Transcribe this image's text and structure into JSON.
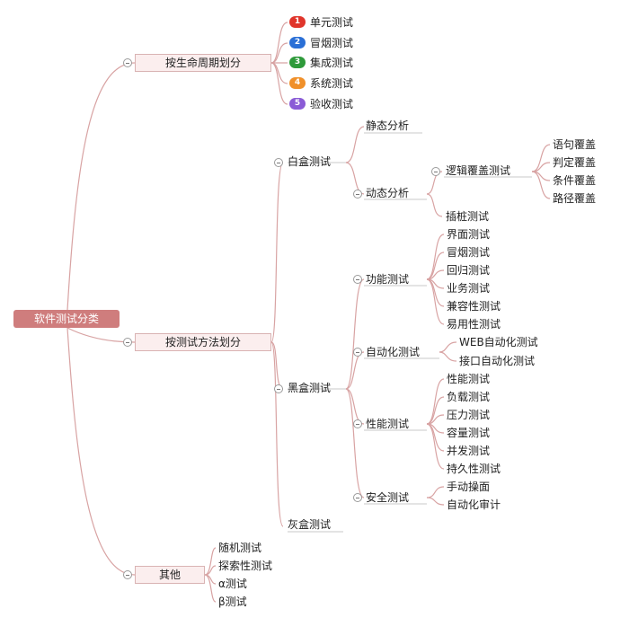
{
  "root": "软件测试分类",
  "branches": {
    "lifecycle": {
      "label": "按生命周期划分",
      "items": [
        {
          "num": "1",
          "label": "单元测试",
          "color": "#e0352b"
        },
        {
          "num": "2",
          "label": "冒烟测试",
          "color": "#2a6fd6"
        },
        {
          "num": "3",
          "label": "集成测试",
          "color": "#2e9a3a"
        },
        {
          "num": "4",
          "label": "系统测试",
          "color": "#f0902a"
        },
        {
          "num": "5",
          "label": "验收测试",
          "color": "#8a5bd6"
        }
      ]
    },
    "method": {
      "label": "按测试方法划分",
      "whitebox": {
        "label": "白盒测试",
        "static": "静态分析",
        "dynamic": "动态分析",
        "logic": "逻辑覆盖测试",
        "logic_items": [
          "语句覆盖",
          "判定覆盖",
          "条件覆盖",
          "路径覆盖"
        ],
        "stub": "插桩测试"
      },
      "blackbox": {
        "label": "黑盒测试",
        "functional": {
          "label": "功能测试",
          "items": [
            "界面测试",
            "冒烟测试",
            "回归测试",
            "业务测试",
            "兼容性测试",
            "易用性测试"
          ]
        },
        "automation": {
          "label": "自动化测试",
          "items": [
            "WEB自动化测试",
            "接口自动化测试"
          ]
        },
        "performance": {
          "label": "性能测试",
          "items": [
            "性能测试",
            "负载测试",
            "压力测试",
            "容量测试",
            "并发测试",
            "持久性测试"
          ]
        },
        "security": {
          "label": "安全测试",
          "items": [
            "手动操面",
            "自动化审计"
          ]
        }
      },
      "graybox": "灰盒测试"
    },
    "other": {
      "label": "其他",
      "items": [
        "随机测试",
        "探索性测试",
        "α测试",
        "β测试"
      ]
    }
  }
}
